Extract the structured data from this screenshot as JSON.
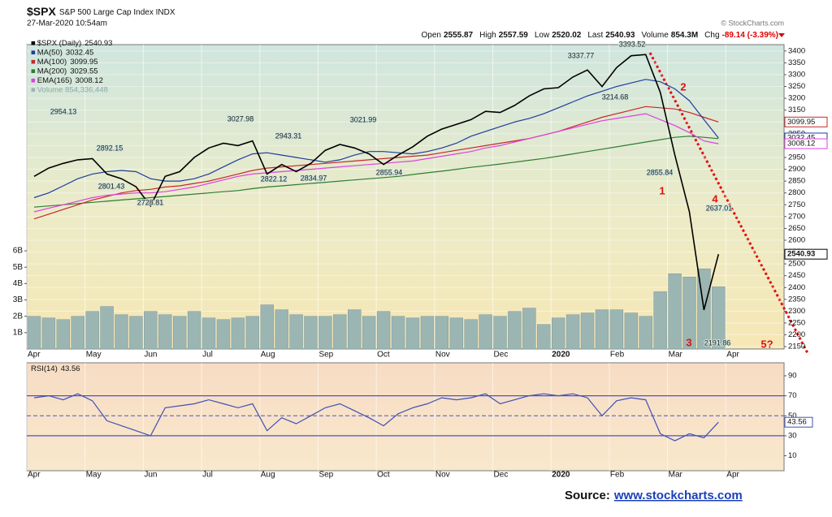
{
  "header": {
    "title": "$SPX",
    "subtitle": "S&P 500 Large Cap Index INDX",
    "date": "27-Mar-2020 10:54am",
    "copyright": "© StockCharts.com",
    "quote": [
      {
        "label": "Open",
        "value": "2555.87"
      },
      {
        "label": "High",
        "value": "2557.59"
      },
      {
        "label": "Low",
        "value": "2520.02"
      },
      {
        "label": "Last",
        "value": "2540.93"
      },
      {
        "label": "Volume",
        "value": "854.3M"
      },
      {
        "label": "Chg",
        "value": "-89.14 (-3.39%)"
      }
    ]
  },
  "source": {
    "label": "Source:",
    "link": "www.stockcharts.com"
  },
  "chart_data": [
    {
      "type": "line",
      "categories": [
        "Apr",
        null,
        null,
        null,
        "May",
        null,
        null,
        null,
        "Jun",
        null,
        null,
        null,
        "Jul",
        null,
        null,
        null,
        "Aug",
        null,
        null,
        null,
        "Sep",
        null,
        null,
        null,
        "Oct",
        null,
        null,
        null,
        "Nov",
        null,
        null,
        null,
        "Dec",
        null,
        null,
        null,
        "2020",
        null,
        null,
        null,
        "Feb",
        null,
        null,
        null,
        "Mar",
        null,
        null,
        null,
        "Apr",
        null,
        null,
        null
      ],
      "ylim": [
        2140,
        3427
      ],
      "yticks": [
        2150,
        2200,
        2250,
        2300,
        2350,
        2400,
        2450,
        2500,
        2550,
        2600,
        2650,
        2700,
        2750,
        2800,
        2850,
        2900,
        2950,
        3000,
        3050,
        3100,
        3150,
        3200,
        3250,
        3300,
        3350,
        3400
      ],
      "y2lim": [
        0,
        18.6
      ],
      "y2ticks": [
        {
          "value": 1,
          "label": "1B"
        },
        {
          "value": 2,
          "label": "2B"
        },
        {
          "value": 3,
          "label": "3B"
        },
        {
          "value": 4,
          "label": "4B"
        },
        {
          "value": 5,
          "label": "5B"
        },
        {
          "value": 6,
          "label": "6B"
        }
      ],
      "grid": true,
      "series": [
        {
          "name": "$SPX (Daily)",
          "color": "#000000",
          "values": [
            2870,
            2905,
            2925,
            2940,
            2945,
            2880,
            2860,
            2826,
            2745,
            2870,
            2890,
            2950,
            2990,
            3010,
            3000,
            3020,
            2880,
            2920,
            2890,
            2925,
            2980,
            3005,
            2990,
            2965,
            2920,
            2960,
            2995,
            3040,
            3070,
            3090,
            3110,
            3145,
            3140,
            3170,
            3210,
            3240,
            3245,
            3290,
            3320,
            3250,
            3330,
            3380,
            3385,
            3225,
            2960,
            2720,
            2305,
            2540.93,
            null,
            null,
            null,
            null
          ]
        },
        {
          "name": "MA(50)",
          "color": "#1f3c9e",
          "values": [
            2780,
            2800,
            2830,
            2860,
            2880,
            2890,
            2895,
            2890,
            2860,
            2850,
            2850,
            2860,
            2880,
            2910,
            2940,
            2965,
            2970,
            2960,
            2950,
            2940,
            2930,
            2940,
            2960,
            2975,
            2975,
            2970,
            2965,
            2975,
            2990,
            3010,
            3040,
            3060,
            3080,
            3100,
            3115,
            3135,
            3160,
            3185,
            3210,
            3230,
            3250,
            3265,
            3280,
            3270,
            3240,
            3190,
            3110,
            3032.45,
            null,
            null,
            null,
            null
          ]
        },
        {
          "name": "MA(100)",
          "color": "#c62828",
          "values": [
            2690,
            2710,
            2730,
            2750,
            2770,
            2785,
            2800,
            2810,
            2815,
            2825,
            2830,
            2840,
            2850,
            2865,
            2880,
            2895,
            2905,
            2910,
            2915,
            2920,
            2925,
            2930,
            2935,
            2940,
            2945,
            2950,
            2955,
            2960,
            2970,
            2980,
            2990,
            3000,
            3010,
            3020,
            3030,
            3045,
            3060,
            3080,
            3100,
            3120,
            3135,
            3150,
            3165,
            3160,
            3155,
            3140,
            3120,
            3099.95,
            null,
            null,
            null,
            null
          ]
        },
        {
          "name": "MA(200)",
          "color": "#2e7d32",
          "values": [
            2740,
            2745,
            2750,
            2755,
            2760,
            2765,
            2770,
            2775,
            2780,
            2785,
            2790,
            2795,
            2800,
            2805,
            2810,
            2818,
            2825,
            2830,
            2835,
            2840,
            2845,
            2850,
            2855,
            2860,
            2865,
            2870,
            2878,
            2885,
            2892,
            2900,
            2908,
            2915,
            2922,
            2930,
            2938,
            2946,
            2955,
            2965,
            2975,
            2985,
            2995,
            3005,
            3015,
            3025,
            3035,
            3040,
            3035,
            3029.55,
            null,
            null,
            null,
            null
          ]
        },
        {
          "name": "EMA(165)",
          "color": "#e040e0",
          "values": [
            2720,
            2735,
            2750,
            2765,
            2780,
            2790,
            2795,
            2800,
            2800,
            2805,
            2815,
            2825,
            2840,
            2855,
            2870,
            2880,
            2885,
            2890,
            2895,
            2900,
            2905,
            2910,
            2915,
            2920,
            2925,
            2930,
            2935,
            2945,
            2955,
            2965,
            2975,
            2990,
            3000,
            3015,
            3030,
            3045,
            3060,
            3075,
            3090,
            3105,
            3115,
            3125,
            3135,
            3110,
            3085,
            3055,
            3020,
            3008.12,
            null,
            null,
            null,
            null
          ]
        },
        {
          "name": "Volume 854,336,448",
          "color": "#9bb5b3",
          "axis": "y2",
          "values": [
            2.0,
            1.9,
            1.8,
            2.0,
            2.3,
            2.6,
            2.1,
            2.0,
            2.3,
            2.1,
            2.0,
            2.3,
            1.9,
            1.8,
            1.9,
            2.0,
            2.7,
            2.4,
            2.1,
            2.0,
            2.0,
            2.1,
            2.4,
            2.0,
            2.3,
            2.0,
            1.9,
            2.0,
            2.0,
            1.9,
            1.8,
            2.1,
            2.0,
            2.3,
            2.5,
            1.5,
            1.9,
            2.1,
            2.2,
            2.4,
            2.4,
            2.2,
            2.0,
            3.5,
            4.6,
            4.4,
            4.9,
            3.8,
            null,
            null,
            null,
            null
          ]
        }
      ],
      "annotations": [
        "2954.13",
        "2892.15",
        "2801.43",
        "2728.81",
        "3027.98",
        "2943.31",
        "2822.12",
        "2834.97",
        "3021.99",
        "2855.94",
        "3337.77",
        "3393.52",
        "3214.68",
        "2855.84",
        "2637.01",
        "2191.86"
      ],
      "waves": [
        "1",
        "2",
        "3",
        "4",
        "5?"
      ]
    },
    {
      "type": "line",
      "title": "RSI(14)",
      "categories": [
        "Apr",
        null,
        null,
        null,
        "May",
        null,
        null,
        null,
        "Jun",
        null,
        null,
        null,
        "Jul",
        null,
        null,
        null,
        "Aug",
        null,
        null,
        null,
        "Sep",
        null,
        null,
        null,
        "Oct",
        null,
        null,
        null,
        "Nov",
        null,
        null,
        null,
        "Dec",
        null,
        null,
        null,
        "2020",
        null,
        null,
        null,
        "Feb",
        null,
        null,
        null,
        "Mar",
        null,
        null,
        null,
        "Apr",
        null,
        null,
        null
      ],
      "ylim": [
        -5,
        103
      ],
      "yticks": [
        10,
        30,
        50,
        70,
        90
      ],
      "overbought": 70,
      "oversold": 30,
      "midline": 50,
      "series": [
        {
          "name": "RSI(14)",
          "color": "#3f51b5",
          "values": [
            68,
            70,
            66,
            72,
            65,
            45,
            40,
            35,
            30,
            58,
            60,
            62,
            66,
            62,
            58,
            62,
            35,
            48,
            42,
            50,
            58,
            62,
            55,
            48,
            40,
            52,
            58,
            62,
            68,
            66,
            68,
            72,
            62,
            66,
            70,
            72,
            70,
            72,
            68,
            50,
            65,
            68,
            66,
            32,
            25,
            32,
            28,
            43.56,
            null,
            null,
            null,
            null
          ]
        }
      ]
    }
  ]
}
